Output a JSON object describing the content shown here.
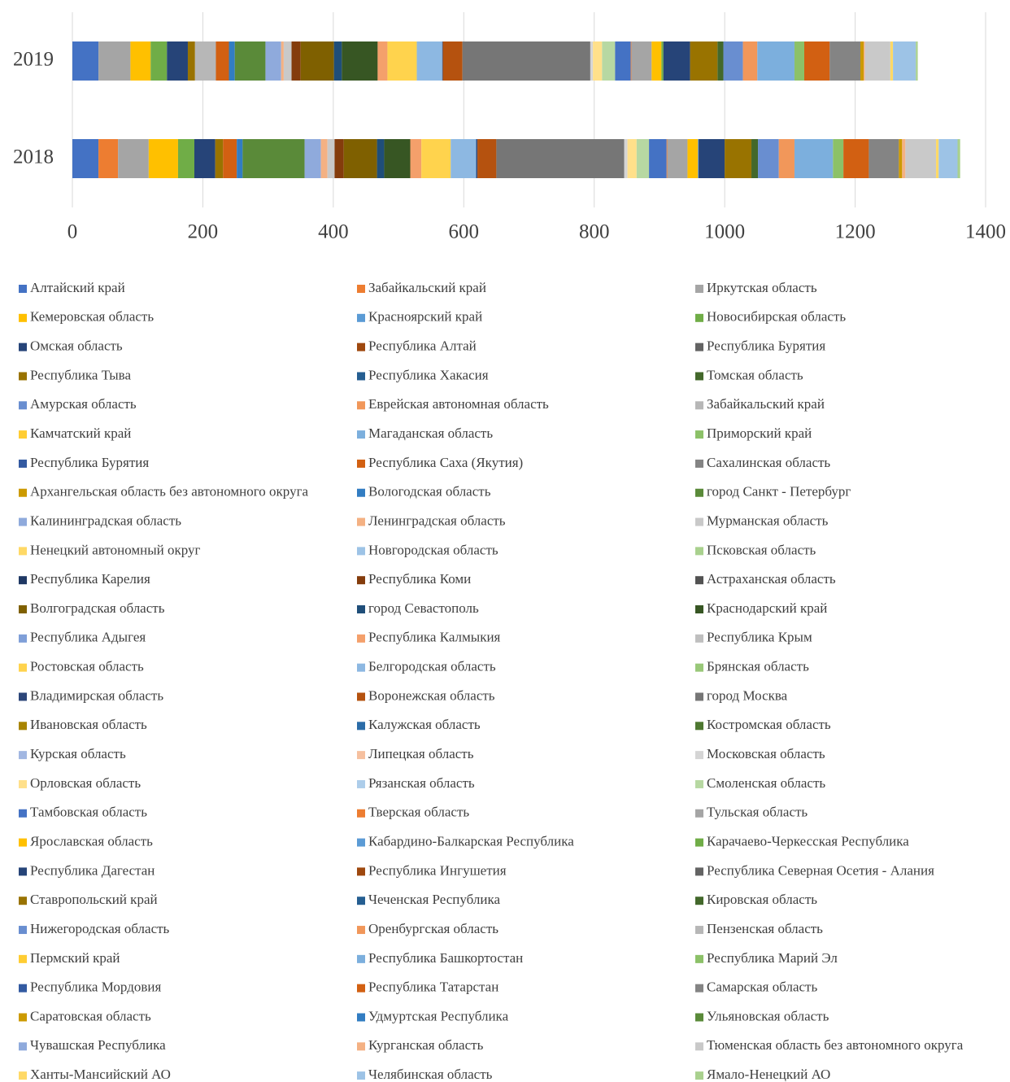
{
  "chart_data": {
    "type": "stacked-bar-horizontal",
    "categories": [
      "2018",
      "2019"
    ],
    "xlim": [
      0,
      1400
    ],
    "xticks": [
      0,
      200,
      400,
      600,
      800,
      1000,
      1200,
      1400
    ],
    "grid": true,
    "legend": "bottom",
    "series": [
      {
        "name": "Алтайский край",
        "color": "#4472C4",
        "values": [
          40,
          40
        ]
      },
      {
        "name": "Забайкальский край",
        "color": "#ED7D31",
        "values": [
          30,
          0
        ]
      },
      {
        "name": "Иркутская область",
        "color": "#A5A5A5",
        "values": [
          47,
          49
        ]
      },
      {
        "name": "Кемеровская область",
        "color": "#FFC000",
        "values": [
          45,
          31
        ]
      },
      {
        "name": "Красноярский край",
        "color": "#5B9BD5",
        "values": [
          0,
          0
        ]
      },
      {
        "name": "Новосибирская область",
        "color": "#70AD47",
        "values": [
          25,
          25
        ]
      },
      {
        "name": "Омская область",
        "color": "#264478",
        "values": [
          32,
          32
        ]
      },
      {
        "name": "Республика Алтай",
        "color": "#9E480E",
        "values": [
          0,
          0
        ]
      },
      {
        "name": "Республика Бурятия",
        "color": "#636363",
        "values": [
          0,
          0
        ]
      },
      {
        "name": "Республика Тыва",
        "color": "#997300",
        "values": [
          12,
          11
        ]
      },
      {
        "name": "Республика Хакасия",
        "color": "#255E91",
        "values": [
          0,
          0
        ]
      },
      {
        "name": "Томская область",
        "color": "#43682B",
        "values": [
          0,
          0
        ]
      },
      {
        "name": "Амурская область",
        "color": "#698ED0",
        "values": [
          0,
          0
        ]
      },
      {
        "name": "Еврейская автономная область",
        "color": "#F1975A",
        "values": [
          0,
          0
        ]
      },
      {
        "name": "Забайкальский край",
        "color": "#B7B7B7",
        "values": [
          0,
          32
        ]
      },
      {
        "name": "Камчатский край",
        "color": "#FFCD33",
        "values": [
          0,
          0
        ]
      },
      {
        "name": "Магаданская область",
        "color": "#7CAFDD",
        "values": [
          0,
          0
        ]
      },
      {
        "name": "Приморский край",
        "color": "#8CC168",
        "values": [
          0,
          0
        ]
      },
      {
        "name": "Республика Бурятия",
        "color": "#335AA1",
        "values": [
          0,
          0
        ]
      },
      {
        "name": "Республика Саха (Якутия)",
        "color": "#D26012",
        "values": [
          21,
          20
        ]
      },
      {
        "name": "Сахалинская область",
        "color": "#848484",
        "values": [
          0,
          0
        ]
      },
      {
        "name": "Архангельская область без автономного округа",
        "color": "#CC9A00",
        "values": [
          0,
          0
        ]
      },
      {
        "name": "Вологодская область",
        "color": "#327DC2",
        "values": [
          9,
          9
        ]
      },
      {
        "name": "город Санкт - Петербург",
        "color": "#5A8A39",
        "values": [
          95,
          47
        ]
      },
      {
        "name": "Калининградская область",
        "color": "#8FAADC",
        "values": [
          25,
          24
        ]
      },
      {
        "name": "Ленинградская область",
        "color": "#F4B183",
        "values": [
          10,
          4
        ]
      },
      {
        "name": "Мурманская область",
        "color": "#C9C9C9",
        "values": [
          11,
          12
        ]
      },
      {
        "name": "Ненецкий автономный округ",
        "color": "#FFD966",
        "values": [
          0,
          0
        ]
      },
      {
        "name": "Новгородская область",
        "color": "#9DC3E6",
        "values": [
          0,
          0
        ]
      },
      {
        "name": "Псковская область",
        "color": "#A9D18E",
        "values": [
          0,
          0
        ]
      },
      {
        "name": "Республика Карелия",
        "color": "#1F3864",
        "values": [
          0,
          0
        ]
      },
      {
        "name": "Республика Коми",
        "color": "#843C0C",
        "values": [
          14,
          14
        ]
      },
      {
        "name": "Астраханская область",
        "color": "#525252",
        "values": [
          0,
          0
        ]
      },
      {
        "name": "Волгоградская область",
        "color": "#7F6000",
        "values": [
          51,
          51
        ]
      },
      {
        "name": "город Севастополь",
        "color": "#1F4E79",
        "values": [
          11,
          12
        ]
      },
      {
        "name": "Краснодарский край",
        "color": "#375623",
        "values": [
          40,
          55
        ]
      },
      {
        "name": "Республика Адыгея",
        "color": "#7F9FD8",
        "values": [
          0,
          0
        ]
      },
      {
        "name": "Республика Калмыкия",
        "color": "#F4A06B",
        "values": [
          17,
          15
        ]
      },
      {
        "name": "Республика Крым",
        "color": "#BFBFBF",
        "values": [
          0,
          0
        ]
      },
      {
        "name": "Ростовская область",
        "color": "#FFD34D",
        "values": [
          45,
          45
        ]
      },
      {
        "name": "Белгородская область",
        "color": "#8DB8E2",
        "values": [
          39,
          39
        ]
      },
      {
        "name": "Брянская область",
        "color": "#99C879",
        "values": [
          0,
          0
        ]
      },
      {
        "name": "Владимирская область",
        "color": "#2C4679",
        "values": [
          2,
          1
        ]
      },
      {
        "name": "Воронежская область",
        "color": "#B5520F",
        "values": [
          29,
          30
        ]
      },
      {
        "name": "город Москва",
        "color": "#767676",
        "values": [
          196,
          196
        ]
      },
      {
        "name": "Ивановская область",
        "color": "#A88400",
        "values": [
          0,
          0
        ]
      },
      {
        "name": "Калужская область",
        "color": "#2B6CA8",
        "values": [
          0,
          0
        ]
      },
      {
        "name": "Костромская область",
        "color": "#4E7831",
        "values": [
          0,
          0
        ]
      },
      {
        "name": "Курская область",
        "color": "#A2B7E2",
        "values": [
          0,
          0
        ]
      },
      {
        "name": "Липецкая область",
        "color": "#F6C09F",
        "values": [
          0,
          0
        ]
      },
      {
        "name": "Московская область",
        "color": "#D5D5D5",
        "values": [
          5,
          4
        ]
      },
      {
        "name": "Орловская область",
        "color": "#FFE08A",
        "values": [
          14,
          14
        ]
      },
      {
        "name": "Рязанская область",
        "color": "#ADCDEA",
        "values": [
          0,
          0
        ]
      },
      {
        "name": "Смоленская область",
        "color": "#B7D8A2",
        "values": [
          19,
          20
        ]
      },
      {
        "name": "Тамбовская область",
        "color": "#4472C4",
        "values": [
          27,
          24
        ]
      },
      {
        "name": "Тверская область",
        "color": "#ED7D31",
        "values": [
          1,
          1
        ]
      },
      {
        "name": "Тульская область",
        "color": "#A5A5A5",
        "values": [
          31,
          31
        ]
      },
      {
        "name": "Ярославская область",
        "color": "#FFC000",
        "values": [
          16,
          15
        ]
      },
      {
        "name": "Кабардино-Балкарская Республика",
        "color": "#5B9BD5",
        "values": [
          1,
          0
        ]
      },
      {
        "name": "Карачаево-Черкесская Республика",
        "color": "#70AD47",
        "values": [
          0,
          3
        ]
      },
      {
        "name": "Республика Дагестан",
        "color": "#264478",
        "values": [
          40,
          41
        ]
      },
      {
        "name": "Республика Ингушетия",
        "color": "#9E480E",
        "values": [
          0,
          0
        ]
      },
      {
        "name": "Республика Северная Осетия - Алания",
        "color": "#636363",
        "values": [
          0,
          0
        ]
      },
      {
        "name": "Ставропольский край",
        "color": "#997300",
        "values": [
          41,
          42
        ]
      },
      {
        "name": "Чеченская Республика",
        "color": "#255E91",
        "values": [
          0,
          0
        ]
      },
      {
        "name": "Кировская область",
        "color": "#43682B",
        "values": [
          10,
          9
        ]
      },
      {
        "name": "Нижегородская область",
        "color": "#698ED0",
        "values": [
          32,
          30
        ]
      },
      {
        "name": "Оренбургская область",
        "color": "#F1975A",
        "values": [
          24,
          22
        ]
      },
      {
        "name": "Пензенская область",
        "color": "#B7B7B7",
        "values": [
          0,
          0
        ]
      },
      {
        "name": "Пермский край",
        "color": "#FFCD33",
        "values": [
          0,
          0
        ]
      },
      {
        "name": "Республика Башкортостан",
        "color": "#7CAFDD",
        "values": [
          59,
          57
        ]
      },
      {
        "name": "Республика Марий Эл",
        "color": "#8CC168",
        "values": [
          16,
          15
        ]
      },
      {
        "name": "Республика Мордовия",
        "color": "#335AA1",
        "values": [
          0,
          0
        ]
      },
      {
        "name": "Республика Татарстан",
        "color": "#D26012",
        "values": [
          39,
          39
        ]
      },
      {
        "name": "Самарская область",
        "color": "#848484",
        "values": [
          46,
          47
        ]
      },
      {
        "name": "Саратовская область",
        "color": "#CC9A00",
        "values": [
          5,
          5
        ]
      },
      {
        "name": "Удмуртская Республика",
        "color": "#327DC2",
        "values": [
          0,
          0
        ]
      },
      {
        "name": "Ульяновская область",
        "color": "#5A8A39",
        "values": [
          0,
          0
        ]
      },
      {
        "name": "Чувашская Республика",
        "color": "#8FAADC",
        "values": [
          0,
          0
        ]
      },
      {
        "name": "Курганская область",
        "color": "#F4B183",
        "values": [
          5,
          2
        ]
      },
      {
        "name": "Тюменская область без автономного округа",
        "color": "#C9C9C9",
        "values": [
          47,
          39
        ]
      },
      {
        "name": "Ханты-Мансийский АО",
        "color": "#FFD966",
        "values": [
          4,
          4
        ]
      },
      {
        "name": "Челябинская область",
        "color": "#9DC3E6",
        "values": [
          29,
          35
        ]
      },
      {
        "name": "Ямало-Ненецкий АО",
        "color": "#A9D18E",
        "values": [
          4,
          3
        ]
      }
    ]
  }
}
